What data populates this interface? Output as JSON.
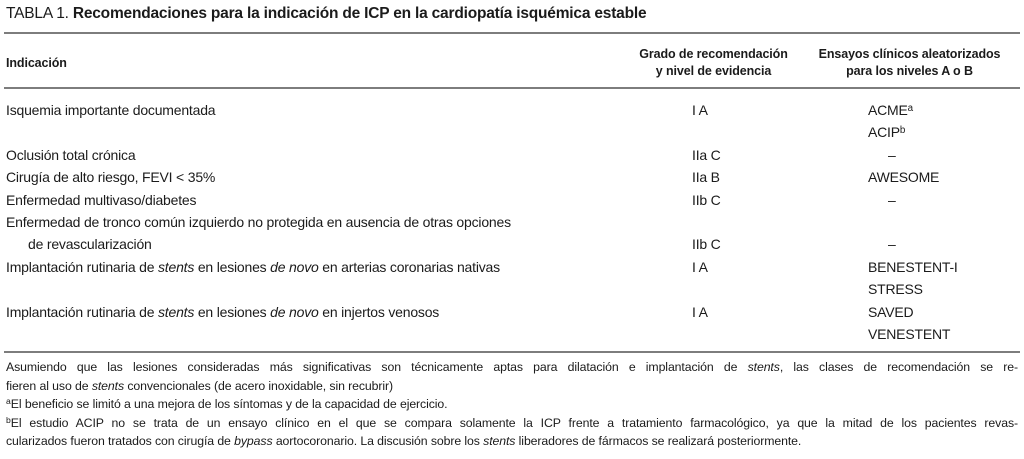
{
  "title": {
    "label": "TABLA 1.",
    "text": "Recomendaciones para la indicación de ICP en la cardiopatía isquémica estable"
  },
  "table": {
    "columns": [
      {
        "id": "indication",
        "header_lines": [
          "Indicación"
        ]
      },
      {
        "id": "grade",
        "header_lines": [
          "Grado de recomendación",
          "y nivel de evidencia"
        ]
      },
      {
        "id": "trials",
        "header_lines": [
          "Ensayos clínicos aleatorizados",
          "para los niveles A o B"
        ]
      }
    ],
    "rows": [
      {
        "indication": [
          {
            "indent": false,
            "segs": [
              {
                "t": "Isquemia importante documentada"
              }
            ]
          }
        ],
        "grade": "I A",
        "grade_on_line": 0,
        "trials_on_line": 0,
        "trials": [
          [
            {
              "t": "ACME"
            },
            {
              "t": "a",
              "sup": true
            }
          ],
          [
            {
              "t": "ACIP"
            },
            {
              "t": "b",
              "sup": true
            }
          ]
        ]
      },
      {
        "indication": [
          {
            "indent": false,
            "segs": [
              {
                "t": "Oclusión total crónica"
              }
            ]
          }
        ],
        "grade": "IIa C",
        "grade_on_line": 0,
        "trials_on_line": 0,
        "trials": [
          [
            {
              "t": "–",
              "dash": true
            }
          ]
        ]
      },
      {
        "indication": [
          {
            "indent": false,
            "segs": [
              {
                "t": "Cirugía de alto riesgo, FEVI < 35%"
              }
            ]
          }
        ],
        "grade": "IIa B",
        "grade_on_line": 0,
        "trials_on_line": 0,
        "trials": [
          [
            {
              "t": "AWESOME"
            }
          ]
        ]
      },
      {
        "indication": [
          {
            "indent": false,
            "segs": [
              {
                "t": "Enfermedad multivaso/diabetes"
              }
            ]
          }
        ],
        "grade": "IIb C",
        "grade_on_line": 0,
        "trials_on_line": 0,
        "trials": [
          [
            {
              "t": "–",
              "dash": true
            }
          ]
        ]
      },
      {
        "indication": [
          {
            "indent": false,
            "segs": [
              {
                "t": "Enfermedad de tronco común izquierdo no protegida en ausencia de otras opciones"
              }
            ]
          },
          {
            "indent": true,
            "segs": [
              {
                "t": "de revascularización"
              }
            ]
          }
        ],
        "grade": "IIb C",
        "grade_on_line": 1,
        "trials_on_line": 1,
        "trials": [
          [
            {
              "t": "–",
              "dash": true
            }
          ]
        ]
      },
      {
        "indication": [
          {
            "indent": false,
            "segs": [
              {
                "t": "Implantación rutinaria de "
              },
              {
                "t": "stents",
                "i": true
              },
              {
                "t": " en lesiones "
              },
              {
                "t": "de novo",
                "i": true
              },
              {
                "t": " en arterias coronarias nativas"
              }
            ]
          }
        ],
        "grade": "I A",
        "grade_on_line": 0,
        "trials_on_line": 0,
        "trials": [
          [
            {
              "t": "BENESTENT-I"
            }
          ],
          [
            {
              "t": "STRESS"
            }
          ]
        ]
      },
      {
        "indication": [
          {
            "indent": false,
            "segs": [
              {
                "t": "Implantación rutinaria de "
              },
              {
                "t": "stents",
                "i": true
              },
              {
                "t": " en lesiones "
              },
              {
                "t": "de novo",
                "i": true
              },
              {
                "t": " en injertos venosos"
              }
            ]
          }
        ],
        "grade": "I A",
        "grade_on_line": 0,
        "trials_on_line": 0,
        "trials": [
          [
            {
              "t": "SAVED"
            }
          ],
          [
            {
              "t": "VENESTENT"
            }
          ]
        ]
      }
    ]
  },
  "footnotes": {
    "lines": [
      {
        "justify": true,
        "segs": [
          {
            "t": "Asumiendo que las lesiones consideradas más significativas son técnicamente aptas para dilatación e implantación de "
          },
          {
            "t": "stents",
            "i": true
          },
          {
            "t": ", las clases de recomendación se re-"
          }
        ]
      },
      {
        "justify": false,
        "segs": [
          {
            "t": "fieren al uso de "
          },
          {
            "t": "stents",
            "i": true
          },
          {
            "t": " convencionales (de acero inoxidable, sin recubrir)"
          }
        ]
      },
      {
        "justify": false,
        "segs": [
          {
            "t": "a",
            "sup": true
          },
          {
            "t": "El beneficio se limitó a una mejora de los síntomas y de la capacidad de ejercicio."
          }
        ]
      },
      {
        "justify": true,
        "segs": [
          {
            "t": "b",
            "sup": true
          },
          {
            "t": "El estudio ACIP no se trata de un ensayo clínico en el que se compara solamente la ICP frente a tratamiento farmacológico, ya que la mitad de los pacientes revas-"
          }
        ]
      },
      {
        "justify": false,
        "segs": [
          {
            "t": "cularizados fueron tratados con cirugía de "
          },
          {
            "t": "bypass",
            "i": true
          },
          {
            "t": " aortocoronario. La discusión sobre los "
          },
          {
            "t": "stents",
            "i": true
          },
          {
            "t": " liberadores de fármacos se realizará posteriormente."
          }
        ]
      }
    ]
  }
}
